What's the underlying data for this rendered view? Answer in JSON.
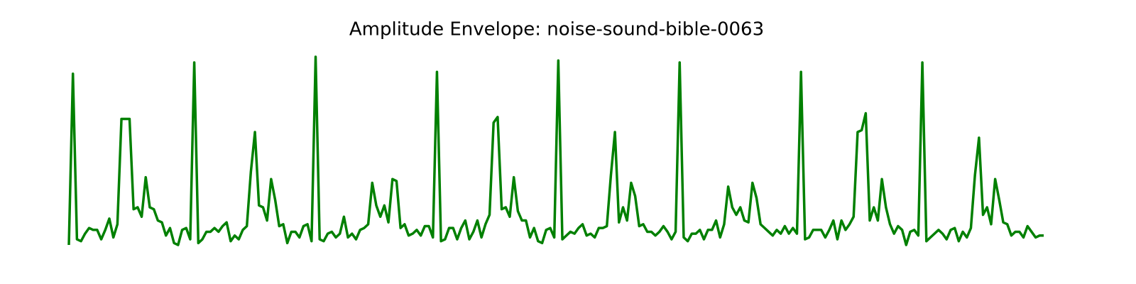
{
  "chart_data": {
    "type": "line",
    "title": "Amplitude Envelope: noise-sound-bible-0063",
    "color": "#008000",
    "ylim": [
      0,
      1
    ],
    "values": [
      0.0,
      0.91,
      0.03,
      0.02,
      0.06,
      0.09,
      0.08,
      0.08,
      0.03,
      0.08,
      0.14,
      0.04,
      0.11,
      0.67,
      0.67,
      0.67,
      0.19,
      0.2,
      0.15,
      0.36,
      0.2,
      0.19,
      0.13,
      0.12,
      0.05,
      0.09,
      0.01,
      0.0,
      0.08,
      0.09,
      0.03,
      0.97,
      0.01,
      0.03,
      0.07,
      0.07,
      0.09,
      0.07,
      0.1,
      0.12,
      0.02,
      0.05,
      0.03,
      0.08,
      0.1,
      0.39,
      0.6,
      0.21,
      0.2,
      0.13,
      0.35,
      0.24,
      0.1,
      0.11,
      0.01,
      0.07,
      0.07,
      0.04,
      0.1,
      0.11,
      0.02,
      1.0,
      0.03,
      0.02,
      0.06,
      0.07,
      0.04,
      0.06,
      0.15,
      0.04,
      0.06,
      0.03,
      0.08,
      0.09,
      0.11,
      0.33,
      0.21,
      0.15,
      0.21,
      0.12,
      0.35,
      0.34,
      0.09,
      0.11,
      0.05,
      0.06,
      0.08,
      0.05,
      0.1,
      0.1,
      0.04,
      0.92,
      0.02,
      0.03,
      0.09,
      0.09,
      0.03,
      0.09,
      0.13,
      0.03,
      0.07,
      0.13,
      0.04,
      0.11,
      0.16,
      0.65,
      0.68,
      0.19,
      0.2,
      0.15,
      0.36,
      0.18,
      0.13,
      0.13,
      0.04,
      0.09,
      0.02,
      0.01,
      0.08,
      0.09,
      0.04,
      0.98,
      0.03,
      0.05,
      0.07,
      0.06,
      0.09,
      0.11,
      0.05,
      0.06,
      0.04,
      0.09,
      0.09,
      0.1,
      0.37,
      0.6,
      0.12,
      0.2,
      0.13,
      0.33,
      0.26,
      0.1,
      0.11,
      0.07,
      0.07,
      0.05,
      0.07,
      0.1,
      0.07,
      0.03,
      0.07,
      0.97,
      0.04,
      0.02,
      0.06,
      0.06,
      0.08,
      0.03,
      0.08,
      0.08,
      0.13,
      0.04,
      0.11,
      0.31,
      0.2,
      0.16,
      0.2,
      0.13,
      0.12,
      0.33,
      0.25,
      0.11,
      0.09,
      0.07,
      0.05,
      0.08,
      0.06,
      0.1,
      0.06,
      0.09,
      0.06,
      0.92,
      0.03,
      0.04,
      0.08,
      0.08,
      0.08,
      0.04,
      0.08,
      0.13,
      0.03,
      0.13,
      0.08,
      0.11,
      0.15,
      0.6,
      0.61,
      0.7,
      0.13,
      0.2,
      0.13,
      0.35,
      0.2,
      0.11,
      0.06,
      0.1,
      0.08,
      0.0,
      0.07,
      0.08,
      0.05,
      0.97,
      0.02,
      0.04,
      0.06,
      0.08,
      0.06,
      0.03,
      0.08,
      0.09,
      0.02,
      0.07,
      0.04,
      0.09,
      0.37,
      0.57,
      0.16,
      0.2,
      0.11,
      0.35,
      0.24,
      0.12,
      0.11,
      0.05,
      0.07,
      0.07,
      0.04,
      0.1,
      0.07,
      0.04,
      0.05,
      0.05
    ]
  }
}
